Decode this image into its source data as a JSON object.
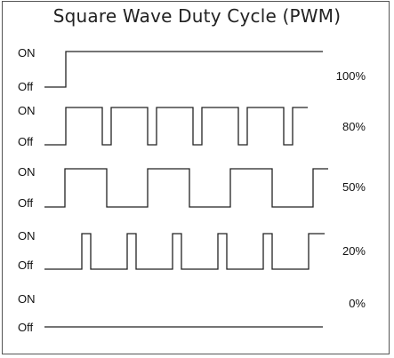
{
  "title": "Square Wave Duty Cycle (PWM)",
  "level_labels": {
    "on": "ON",
    "off": "Off"
  },
  "waveforms": [
    {
      "duty_label": "100%",
      "duty": 1.0,
      "cycles": 0
    },
    {
      "duty_label": "80%",
      "duty": 0.8,
      "cycles": 5
    },
    {
      "duty_label": "50%",
      "duty": 0.5,
      "cycles": 3
    },
    {
      "duty_label": "20%",
      "duty": 0.2,
      "cycles": 5
    },
    {
      "duty_label": "0%",
      "duty": 0.0,
      "cycles": 0
    }
  ],
  "colors": {
    "line": "#222222",
    "border": "#555555",
    "background": "#ffffff"
  }
}
